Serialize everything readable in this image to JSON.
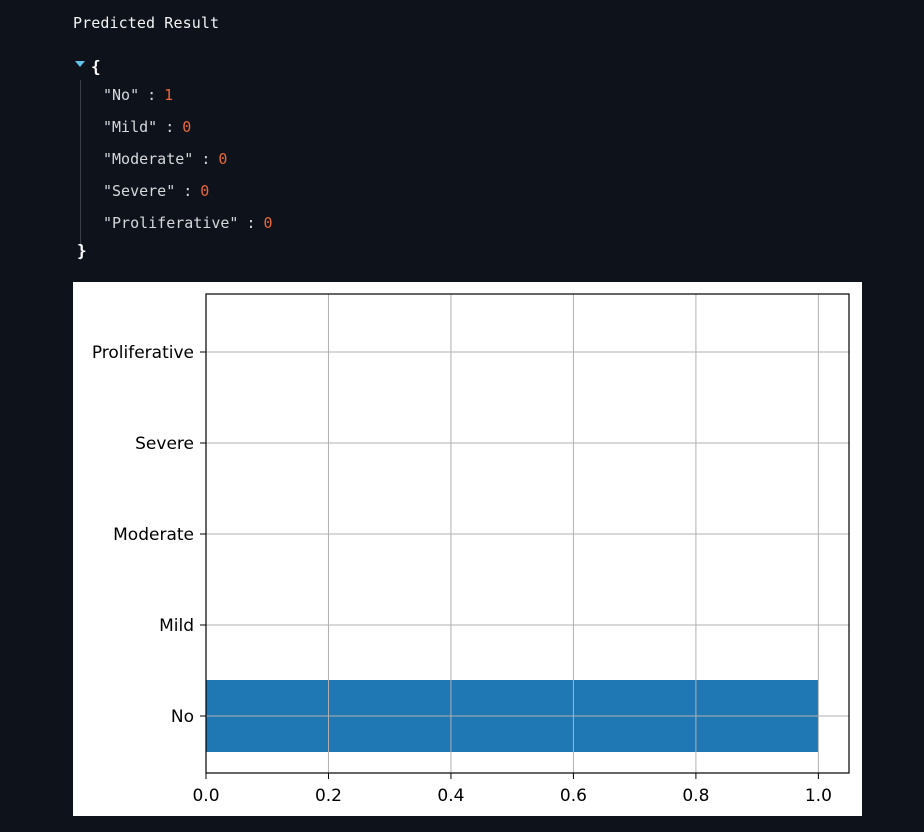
{
  "header": {
    "title": "Predicted Result"
  },
  "json_view": {
    "open_brace": "{",
    "close_brace": "}",
    "entries": [
      {
        "key": "\"No\"",
        "value": "1"
      },
      {
        "key": "\"Mild\"",
        "value": "0"
      },
      {
        "key": "\"Moderate\"",
        "value": "0"
      },
      {
        "key": "\"Severe\"",
        "value": "0"
      },
      {
        "key": "\"Proliferative\"",
        "value": "0"
      }
    ],
    "colors": {
      "key": "#d6d8dc",
      "value": "#e8673c",
      "caret": "#60c4e8"
    }
  },
  "chart_data": {
    "type": "bar",
    "orientation": "horizontal",
    "categories": [
      "No",
      "Mild",
      "Moderate",
      "Severe",
      "Proliferative"
    ],
    "values": [
      1,
      0,
      0,
      0,
      0
    ],
    "xticks": [
      "0.0",
      "0.2",
      "0.4",
      "0.6",
      "0.8",
      "1.0"
    ],
    "xlim": [
      0,
      1.05
    ],
    "grid": true,
    "bar_color": "#1f77b4",
    "title": "",
    "xlabel": "",
    "ylabel": ""
  }
}
